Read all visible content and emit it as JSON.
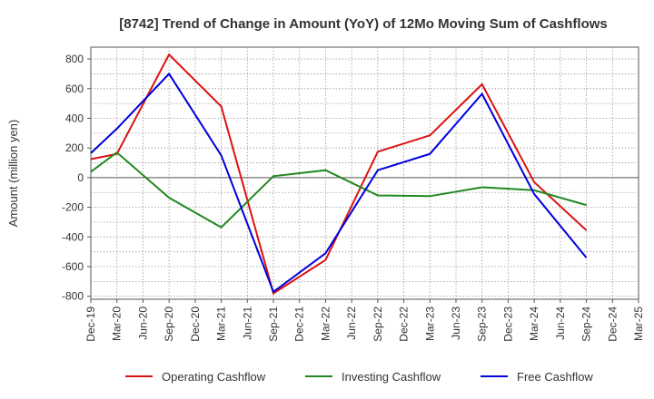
{
  "chart_data": {
    "type": "line",
    "title": "[8742]  Trend of Change in Amount (YoY) of 12Mo Moving Sum of Cashflows",
    "xlabel": "",
    "ylabel": "Amount (million yen)",
    "ylim": [
      -820,
      880
    ],
    "yticks": [
      800,
      600,
      400,
      200,
      0,
      -200,
      -400,
      -600,
      -800
    ],
    "categories": [
      "Dec-19",
      "Mar-20",
      "Jun-20",
      "Sep-20",
      "Dec-20",
      "Mar-21",
      "Jun-21",
      "Sep-21",
      "Dec-21",
      "Mar-22",
      "Jun-22",
      "Sep-22",
      "Dec-22",
      "Mar-23",
      "Jun-23",
      "Sep-23",
      "Dec-23",
      "Mar-24",
      "Jun-24",
      "Sep-24",
      "Dec-24",
      "Mar-25"
    ],
    "grid": true,
    "legend_position": "bottom",
    "series": [
      {
        "name": "Operating Cashflow",
        "color": "#dd1111",
        "values": [
          125,
          160,
          null,
          830,
          null,
          480,
          null,
          -780,
          null,
          -555,
          null,
          175,
          null,
          285,
          null,
          630,
          null,
          -30,
          null,
          -355,
          null,
          null
        ]
      },
      {
        "name": "Investing Cashflow",
        "color": "#228822",
        "values": [
          40,
          170,
          null,
          -135,
          null,
          -335,
          null,
          10,
          null,
          50,
          null,
          -120,
          null,
          -125,
          null,
          -65,
          null,
          -85,
          null,
          -185,
          null,
          null
        ]
      },
      {
        "name": "Free Cashflow",
        "color": "#0000dd",
        "values": [
          165,
          330,
          null,
          700,
          null,
          150,
          null,
          -770,
          null,
          -510,
          null,
          50,
          null,
          160,
          null,
          565,
          null,
          -110,
          null,
          -540,
          null,
          null
        ]
      }
    ]
  }
}
